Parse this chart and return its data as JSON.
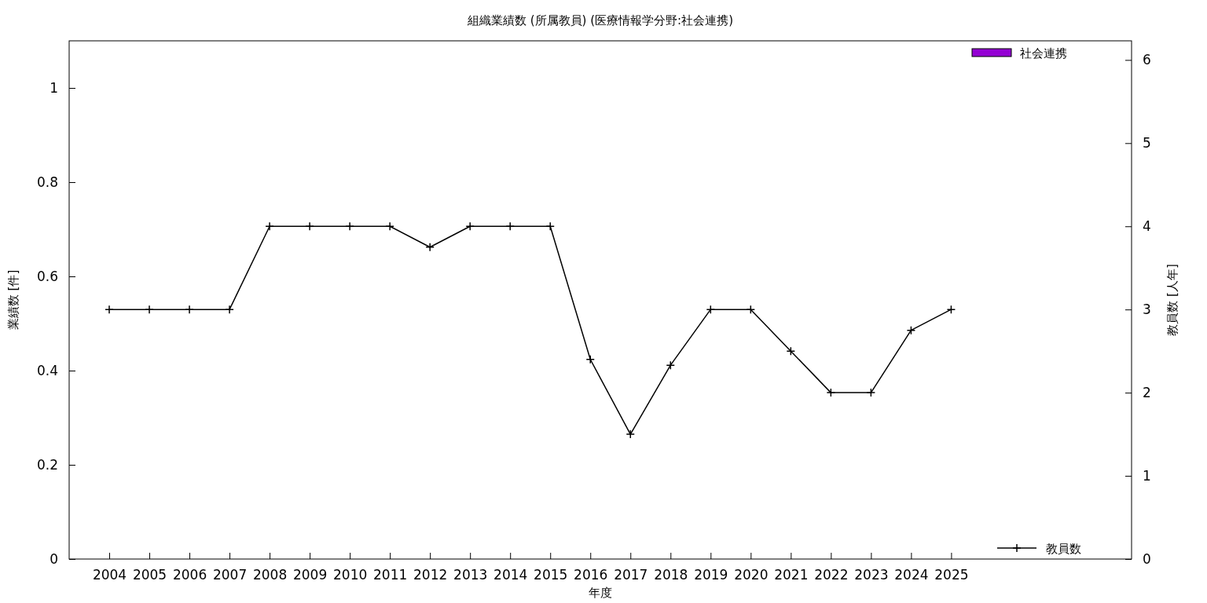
{
  "chart_data": {
    "type": "bar",
    "title": "組織業績数 (所属教員) (医療情報学分野:社会連携)",
    "xlabel": "年度",
    "ylabel": "業績数 [件]",
    "y2label": "教員数 [人年]",
    "x": [
      2004,
      2005,
      2006,
      2007,
      2008,
      2009,
      2010,
      2011,
      2012,
      2013,
      2014,
      2015,
      2016,
      2017,
      2018,
      2019,
      2020,
      2021,
      2022,
      2023,
      2024,
      2025
    ],
    "xlim": [
      2003,
      2029.5
    ],
    "xticks": [
      2004,
      2005,
      2006,
      2007,
      2008,
      2009,
      2010,
      2011,
      2012,
      2013,
      2014,
      2015,
      2016,
      2017,
      2018,
      2019,
      2020,
      2021,
      2022,
      2023,
      2024,
      2025
    ],
    "ylim": [
      0,
      1.1
    ],
    "yticks": [
      0,
      0.2,
      0.4,
      0.6,
      0.8,
      1
    ],
    "y2lim": [
      0,
      6.23
    ],
    "y2ticks": [
      0,
      1,
      2,
      3,
      4,
      5,
      6
    ],
    "series": [
      {
        "name": "社会連携",
        "color": "#9400d3",
        "values": [
          0,
          0,
          0,
          0,
          0,
          0,
          0,
          0,
          0,
          0,
          0,
          0,
          0,
          0,
          0,
          0,
          0,
          0,
          0,
          0,
          0,
          0
        ]
      },
      {
        "name": "教員数",
        "type": "line",
        "axis": "y2",
        "color": "#000000",
        "values": [
          3,
          3,
          3,
          3,
          4,
          4,
          4,
          4,
          3.75,
          4,
          4,
          4,
          2.4,
          1.5,
          2.33,
          3,
          3,
          2.5,
          2,
          2,
          2.75,
          3
        ]
      }
    ],
    "marker": "cross",
    "legend": "right",
    "grid": false
  }
}
